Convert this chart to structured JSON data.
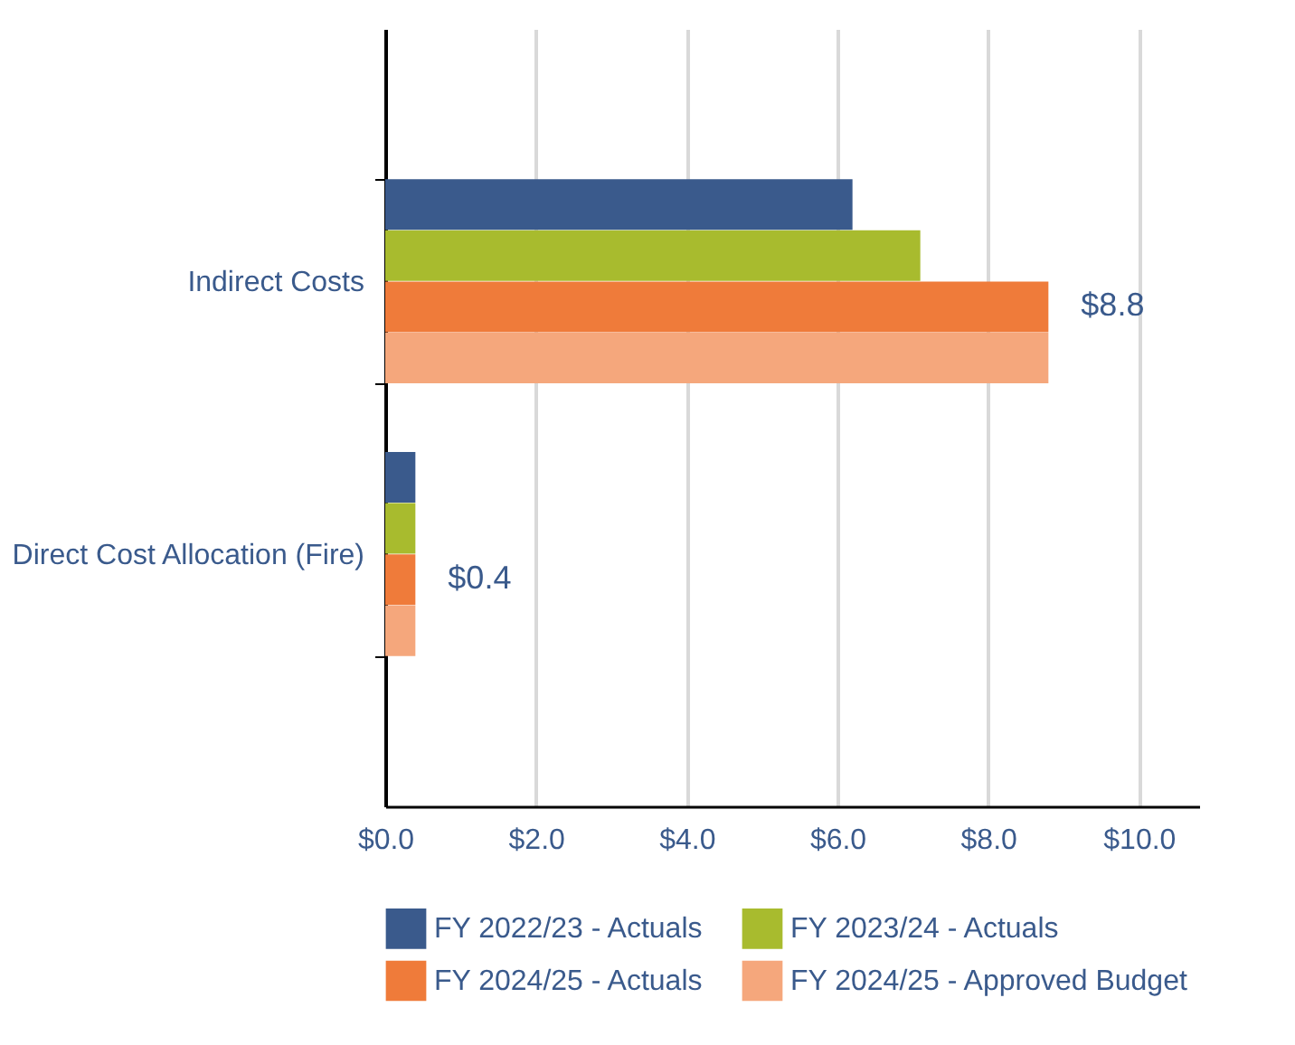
{
  "chart_data": {
    "type": "bar",
    "orientation": "horizontal",
    "categories": [
      "Indirect Costs",
      "Direct Cost Allocation (Fire)"
    ],
    "series": [
      {
        "name": "FY 2022/23 - Actuals",
        "color": "#3a5a8c",
        "values": [
          6.2,
          0.4
        ]
      },
      {
        "name": "FY 2023/24 - Actuals",
        "color": "#a8bb2e",
        "values": [
          7.1,
          0.4
        ]
      },
      {
        "name": "FY 2024/25 - Actuals",
        "color": "#ef7b3a",
        "values": [
          8.8,
          0.4
        ],
        "value_labels": [
          "$8.8",
          "$0.4"
        ]
      },
      {
        "name": "FY 2024/25 - Approved Budget",
        "color": "#f5a77c",
        "values": [
          8.8,
          0.4
        ]
      }
    ],
    "xlim": [
      0,
      10.8
    ],
    "xticks": [
      {
        "value": 0,
        "label": "$0.0"
      },
      {
        "value": 2,
        "label": "$2.0"
      },
      {
        "value": 4,
        "label": "$4.0"
      },
      {
        "value": 6,
        "label": "$6.0"
      },
      {
        "value": 8,
        "label": "$8.0"
      },
      {
        "value": 10,
        "label": "$10.0"
      }
    ],
    "grid": "x",
    "legend": "bottom"
  }
}
